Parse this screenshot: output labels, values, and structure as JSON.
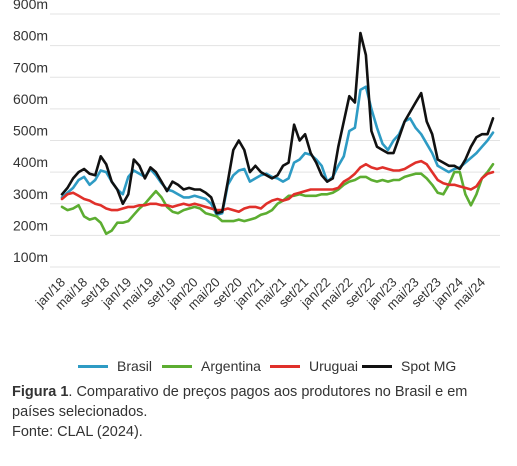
{
  "chart_data": {
    "type": "line",
    "title": "",
    "xlabel": "",
    "ylabel": "",
    "ylim": [
      100,
      900
    ],
    "yticks": [
      100,
      200,
      300,
      400,
      500,
      600,
      700,
      800,
      900
    ],
    "ytick_labels": [
      "100m",
      "200m",
      "300m",
      "400m",
      "500m",
      "600m",
      "700m",
      "800m",
      "900m"
    ],
    "xtick_labels": [
      "jan/18",
      "mai/18",
      "set/18",
      "jan/19",
      "mai/19",
      "set/19",
      "jan/20",
      "mai/20",
      "set/20",
      "jan/21",
      "mai/21",
      "set/21",
      "jan/22",
      "mai/22",
      "set/22",
      "jan/23",
      "mai/23",
      "set/23",
      "jan/24",
      "mai/24"
    ],
    "x": [
      "jan/18",
      "fev/18",
      "mar/18",
      "abr/18",
      "mai/18",
      "jun/18",
      "jul/18",
      "ago/18",
      "set/18",
      "out/18",
      "nov/18",
      "dez/18",
      "jan/19",
      "fev/19",
      "mar/19",
      "abr/19",
      "mai/19",
      "jun/19",
      "jul/19",
      "ago/19",
      "set/19",
      "out/19",
      "nov/19",
      "dez/19",
      "jan/20",
      "fev/20",
      "mar/20",
      "abr/20",
      "mai/20",
      "jun/20",
      "jul/20",
      "ago/20",
      "set/20",
      "out/20",
      "nov/20",
      "dez/20",
      "jan/21",
      "fev/21",
      "mar/21",
      "abr/21",
      "mai/21",
      "jun/21",
      "jul/21",
      "ago/21",
      "set/21",
      "out/21",
      "nov/21",
      "dez/21",
      "jan/22",
      "fev/22",
      "mar/22",
      "abr/22",
      "mai/22",
      "jun/22",
      "jul/22",
      "ago/22",
      "set/22",
      "out/22",
      "nov/22",
      "dez/22",
      "jan/23",
      "fev/23",
      "mar/23",
      "abr/23",
      "mai/23",
      "jun/23",
      "jul/23",
      "ago/23",
      "set/23",
      "out/23",
      "nov/23",
      "dez/23",
      "jan/24",
      "fev/24",
      "mar/24",
      "abr/24",
      "mai/24",
      "jun/24",
      "jul/24"
    ],
    "series": [
      {
        "name": "Brasil",
        "color": "#2e9bc4",
        "values": [
          320,
          335,
          350,
          375,
          385,
          360,
          375,
          405,
          400,
          370,
          345,
          330,
          385,
          405,
          395,
          385,
          410,
          390,
          365,
          345,
          340,
          330,
          320,
          320,
          325,
          320,
          315,
          300,
          265,
          270,
          360,
          390,
          405,
          410,
          370,
          380,
          390,
          395,
          385,
          380,
          370,
          380,
          430,
          440,
          460,
          455,
          440,
          420,
          370,
          385,
          420,
          450,
          530,
          540,
          660,
          670,
          600,
          540,
          490,
          470,
          500,
          520,
          560,
          570,
          540,
          520,
          490,
          460,
          420,
          410,
          400,
          410,
          415,
          430,
          445,
          460,
          480,
          500,
          525
        ]
      },
      {
        "name": "Argentina",
        "color": "#5cad31",
        "values": [
          290,
          280,
          285,
          295,
          260,
          250,
          255,
          240,
          205,
          215,
          240,
          240,
          245,
          265,
          285,
          300,
          320,
          340,
          320,
          290,
          275,
          270,
          280,
          285,
          290,
          285,
          270,
          265,
          260,
          245,
          245,
          245,
          250,
          245,
          250,
          255,
          265,
          270,
          280,
          300,
          310,
          325,
          325,
          330,
          325,
          325,
          325,
          330,
          330,
          335,
          345,
          360,
          370,
          375,
          385,
          385,
          375,
          370,
          375,
          370,
          375,
          375,
          385,
          390,
          395,
          395,
          380,
          360,
          335,
          330,
          360,
          400,
          400,
          330,
          295,
          330,
          380,
          400,
          425
        ]
      },
      {
        "name": "Uruguai",
        "color": "#e0302a",
        "values": [
          315,
          330,
          335,
          325,
          315,
          310,
          300,
          295,
          285,
          280,
          280,
          285,
          290,
          290,
          295,
          295,
          300,
          300,
          295,
          295,
          290,
          295,
          300,
          295,
          300,
          295,
          290,
          285,
          280,
          280,
          285,
          280,
          275,
          285,
          290,
          290,
          285,
          300,
          310,
          315,
          310,
          315,
          330,
          335,
          340,
          345,
          345,
          345,
          345,
          345,
          350,
          370,
          380,
          395,
          415,
          425,
          415,
          410,
          415,
          410,
          405,
          405,
          410,
          420,
          430,
          435,
          425,
          400,
          375,
          365,
          360,
          360,
          355,
          350,
          345,
          355,
          380,
          395,
          400
        ]
      },
      {
        "name": "Spot MG",
        "color": "#111111",
        "values": [
          330,
          350,
          380,
          400,
          410,
          395,
          390,
          450,
          425,
          370,
          345,
          300,
          330,
          440,
          420,
          380,
          415,
          400,
          370,
          340,
          370,
          360,
          345,
          350,
          345,
          345,
          335,
          320,
          270,
          275,
          370,
          470,
          500,
          470,
          400,
          420,
          400,
          390,
          380,
          390,
          420,
          430,
          550,
          500,
          520,
          460,
          430,
          390,
          370,
          380,
          480,
          560,
          640,
          620,
          840,
          770,
          530,
          480,
          470,
          460,
          460,
          510,
          560,
          590,
          620,
          650,
          560,
          520,
          440,
          430,
          420,
          420,
          410,
          440,
          480,
          510,
          520,
          520,
          570
        ]
      }
    ],
    "legend_placement": "bottom",
    "grid": true
  },
  "caption": {
    "label": "Figura 1",
    "text": ". Comparativo de preços pagos aos produtores no Brasil e em países selecionados.",
    "source": "Fonte: CLAL (2024)."
  }
}
